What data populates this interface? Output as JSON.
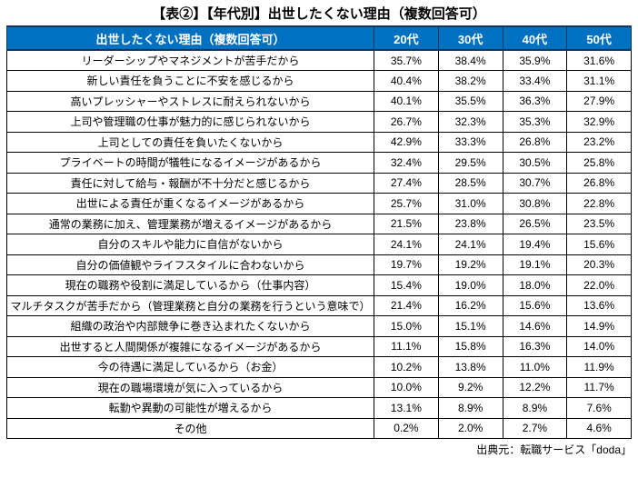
{
  "title": "【表②】【年代別】出世したくない理由（複数回答可）",
  "footer": {
    "source": "出典元：転職サービス「doda」"
  },
  "colors": {
    "header_bg": "#0070C0",
    "header_text": "#FFFFFF",
    "border": "#000000",
    "header_border": "#17365D"
  },
  "chart_data": {
    "type": "table",
    "title": "【表②】【年代別】出世したくない理由（複数回答可）",
    "unit": "%",
    "columns": [
      "出世したくない理由（複数回答可）",
      "20代",
      "30代",
      "40代",
      "50代"
    ],
    "rows": [
      [
        "リーダーシップやマネジメントが苦手だから",
        35.7,
        38.4,
        35.9,
        31.6
      ],
      [
        "新しい責任を負うことに不安を感じるから",
        40.4,
        38.2,
        33.4,
        31.1
      ],
      [
        "高いプレッシャーやストレスに耐えられないから",
        40.1,
        35.5,
        36.3,
        27.9
      ],
      [
        "上司や管理職の仕事が魅力的に感じられないから",
        26.7,
        32.3,
        35.3,
        32.9
      ],
      [
        "上司としての責任を負いたくないから",
        42.9,
        33.3,
        26.8,
        23.2
      ],
      [
        "プライベートの時間が犠牲になるイメージがあるから",
        32.4,
        29.5,
        30.5,
        25.8
      ],
      [
        "責任に対して給与・報酬が不十分だと感じるから",
        27.4,
        28.5,
        30.7,
        26.8
      ],
      [
        "出世による責任が重くなるイメージがあるから",
        25.7,
        31.0,
        30.8,
        22.8
      ],
      [
        "通常の業務に加え、管理業務が増えるイメージがあるから",
        21.5,
        23.8,
        26.5,
        23.5
      ],
      [
        "自分のスキルや能力に自信がないから",
        24.1,
        24.1,
        19.4,
        15.6
      ],
      [
        "自分の価値観やライフスタイルに合わないから",
        19.7,
        19.2,
        19.1,
        20.3
      ],
      [
        "現在の職務や役割に満足しているから（仕事内容）",
        15.4,
        19.0,
        18.0,
        22.0
      ],
      [
        "マルチタスクが苦手だから（管理業務と自分の業務を行うという意味で）",
        21.4,
        16.2,
        15.6,
        13.6
      ],
      [
        "組織の政治や内部競争に巻き込まれたくないから",
        15.0,
        15.1,
        14.6,
        14.9
      ],
      [
        "出世すると人間関係が複雑になるイメージがあるから",
        11.1,
        15.8,
        16.3,
        14.0
      ],
      [
        "今の待遇に満足しているから（お金）",
        10.2,
        13.8,
        11.0,
        11.9
      ],
      [
        "現在の職場環境が気に入っているから",
        10.0,
        9.2,
        12.2,
        11.7
      ],
      [
        "転勤や異動の可能性が増えるから",
        13.1,
        8.9,
        8.9,
        7.6
      ],
      [
        "その他",
        0.2,
        2.0,
        2.7,
        4.6
      ]
    ],
    "source": "出典元：転職サービス「doda」",
    "layout": {
      "grid": "on",
      "header_row": true,
      "value_format": "one-decimal-percent"
    }
  }
}
